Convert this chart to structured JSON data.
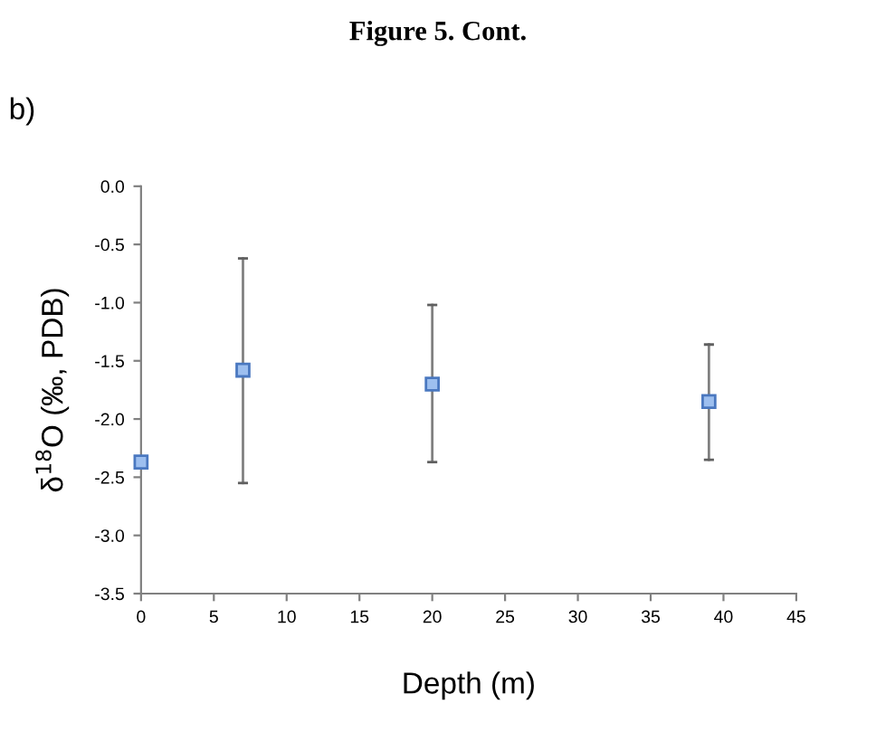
{
  "chart_data": {
    "type": "scatter",
    "title": "Figure 5. Cont.",
    "xlabel": "Depth (m)",
    "ylabel": "δ$^{18}$O (‰, PDB)",
    "annotations": [
      "b)"
    ],
    "x": [
      0,
      7,
      20,
      39
    ],
    "series": [
      {
        "color": "#9dbfef",
        "values": [
          -2.37,
          -1.58,
          -1.7,
          -1.85
        ],
        "errors": [
          null,
          [
            -2.55,
            -0.62
          ],
          [
            -2.37,
            -1.02
          ],
          [
            -2.35,
            -1.36
          ]
        ]
      }
    ],
    "xlim": [
      0,
      45
    ],
    "xticks": [
      0,
      5,
      10,
      15,
      20,
      25,
      30,
      35,
      40,
      45
    ],
    "ylim": [
      -3.5,
      0.0
    ],
    "yticks": [
      {
        "value": -3.5,
        "label": "-3.5"
      },
      {
        "value": -3.0,
        "label": "-3.0"
      },
      {
        "value": -2.5,
        "label": "-2.5"
      },
      {
        "value": -2.0,
        "label": "-2.0"
      },
      {
        "value": -1.5,
        "label": "-1.5"
      },
      {
        "value": -1.0,
        "label": "-1.0"
      },
      {
        "value": -0.5,
        "label": "-0.5"
      },
      {
        "value": 0.0,
        "label": "0.0"
      }
    ],
    "marker": "square",
    "grid": false,
    "legend": false
  }
}
